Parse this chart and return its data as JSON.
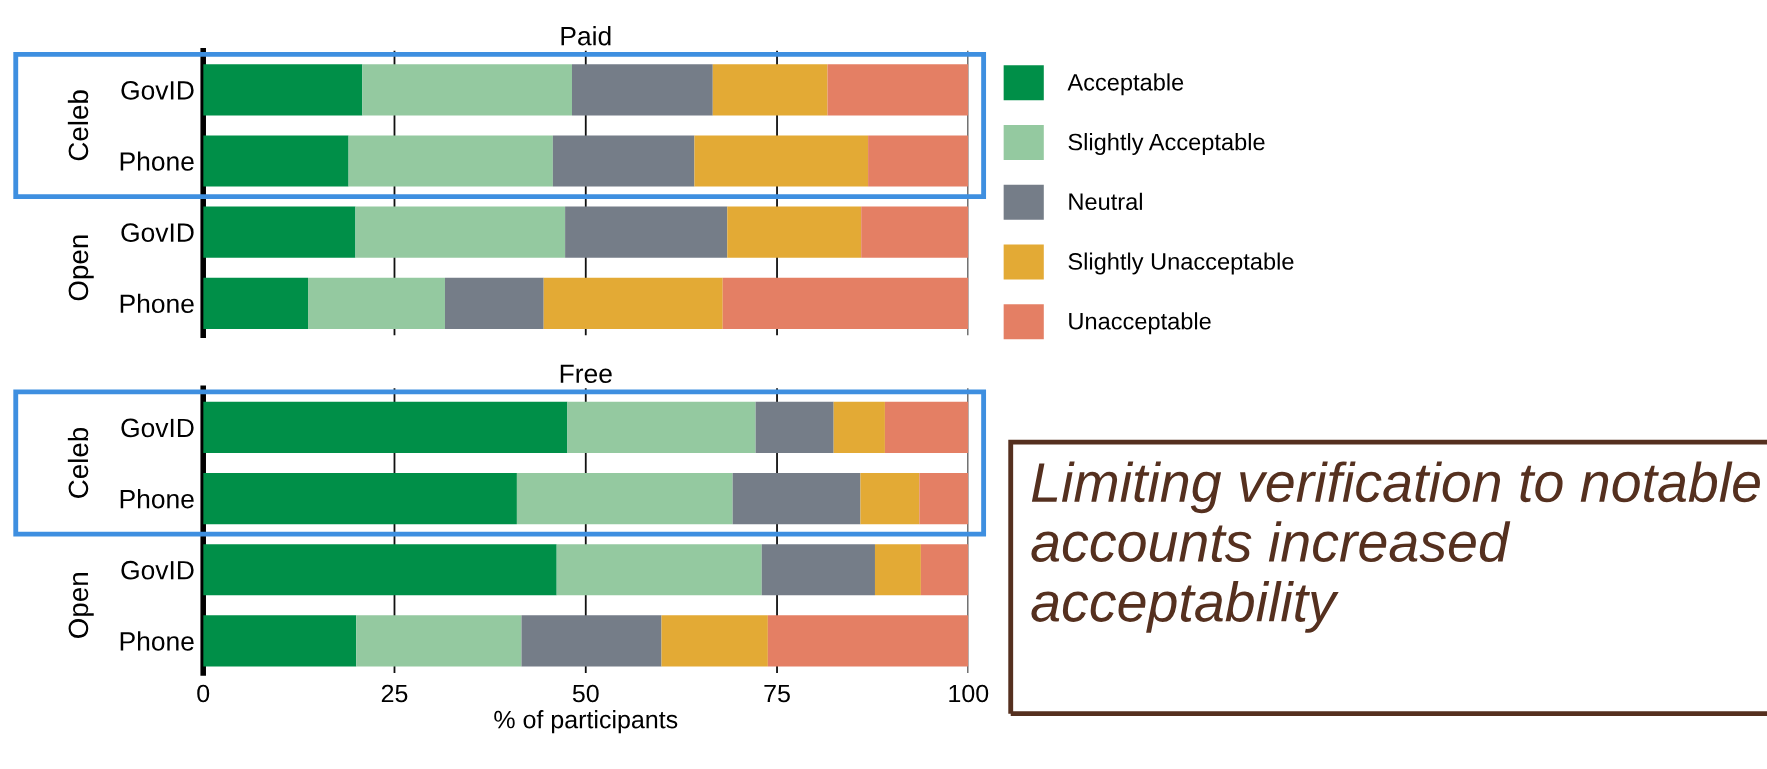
{
  "chart_data": [
    {
      "type": "bar",
      "title": "Paid",
      "orientation": "horizontal",
      "stacked": true,
      "categories": [
        "GovID",
        "Phone",
        "GovID",
        "Phone"
      ],
      "xlim": [
        0,
        100
      ],
      "xticks": [
        0,
        25,
        50,
        75,
        100
      ],
      "grid": "x",
      "tick_labels": "y",
      "legend": "right",
      "annotations": [
        "Celeb",
        "Open"
      ],
      "series": [
        {
          "name": "Acceptable",
          "color": "#008f48",
          "values": [
            20.8,
            19.0,
            19.9,
            13.7
          ]
        },
        {
          "name": "Slightly Acceptable",
          "color": "#94c9a0",
          "values": [
            27.4,
            26.7,
            27.4,
            17.9
          ]
        },
        {
          "name": "Neutral",
          "color": "#757d88",
          "values": [
            18.4,
            18.5,
            21.2,
            12.9
          ]
        },
        {
          "name": "Slightly Unacceptable",
          "color": "#e3aa35",
          "values": [
            15.0,
            22.7,
            17.5,
            23.4
          ]
        },
        {
          "name": "Unacceptable",
          "color": "#e47f64",
          "values": [
            18.4,
            13.1,
            14.0,
            32.1
          ]
        }
      ]
    },
    {
      "type": "bar",
      "title": "Free",
      "orientation": "horizontal",
      "stacked": true,
      "categories": [
        "GovID",
        "Phone",
        "GovID",
        "Phone"
      ],
      "xlim": [
        0,
        100
      ],
      "xticks": [
        0,
        25,
        50,
        75,
        100
      ],
      "xlabel": "% of participants",
      "grid": "x",
      "annotations": [
        "Celeb",
        "Open",
        "Limiting verification to notable accounts increased acceptability"
      ],
      "series": [
        {
          "color": "#008f48",
          "values": [
            47.6,
            41.0,
            46.2,
            20.0
          ]
        },
        {
          "color": "#94c9a0",
          "values": [
            24.6,
            28.2,
            26.8,
            21.6
          ]
        },
        {
          "color": "#757d88",
          "values": [
            10.2,
            16.7,
            14.8,
            18.3
          ]
        },
        {
          "color": "#e3aa35",
          "values": [
            6.7,
            7.7,
            6.0,
            13.9
          ]
        },
        {
          "color": "#e47f64",
          "values": [
            10.9,
            6.4,
            6.2,
            26.2
          ]
        }
      ]
    }
  ]
}
